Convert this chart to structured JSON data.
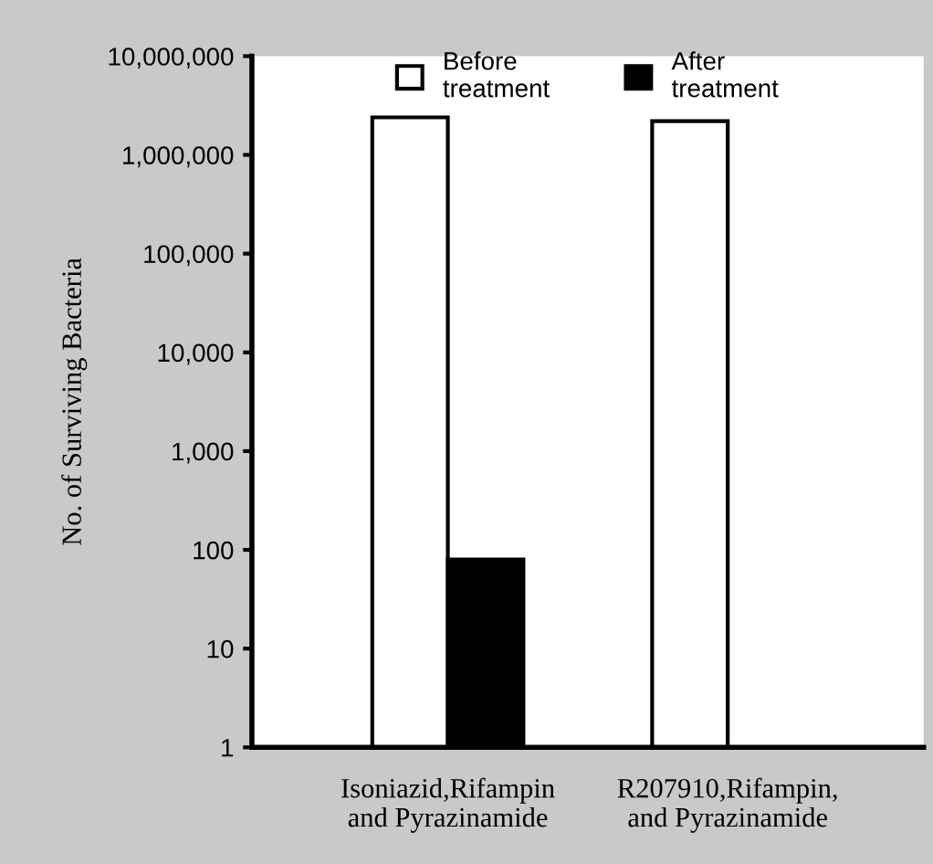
{
  "chart_data": {
    "type": "bar",
    "ylabel": "No. of Surviving Bacteria",
    "log": true,
    "categories": [
      "Isoniazid,Rifampin\nand Pyrazinamide",
      "R207910,Rifampin,\nand Pyrazinamide"
    ],
    "series": [
      {
        "name": "Before\ntreatment",
        "color": "#ffffff",
        "values": [
          2400000,
          2200000
        ]
      },
      {
        "name": "After\ntreatment",
        "color": "#000000",
        "values": [
          80,
          null
        ]
      }
    ],
    "ylim": [
      1,
      10000000
    ],
    "yticks": [
      {
        "value": 1,
        "label": "1"
      },
      {
        "value": 10,
        "label": "10"
      },
      {
        "value": 100,
        "label": "100"
      },
      {
        "value": 1000,
        "label": "1,000"
      },
      {
        "value": 10000,
        "label": "10,000"
      },
      {
        "value": 100000,
        "label": "100,000"
      },
      {
        "value": 1000000,
        "label": "1,000,000"
      },
      {
        "value": 10000000,
        "label": "10,000,000"
      }
    ],
    "grid": false,
    "legend": "top"
  }
}
